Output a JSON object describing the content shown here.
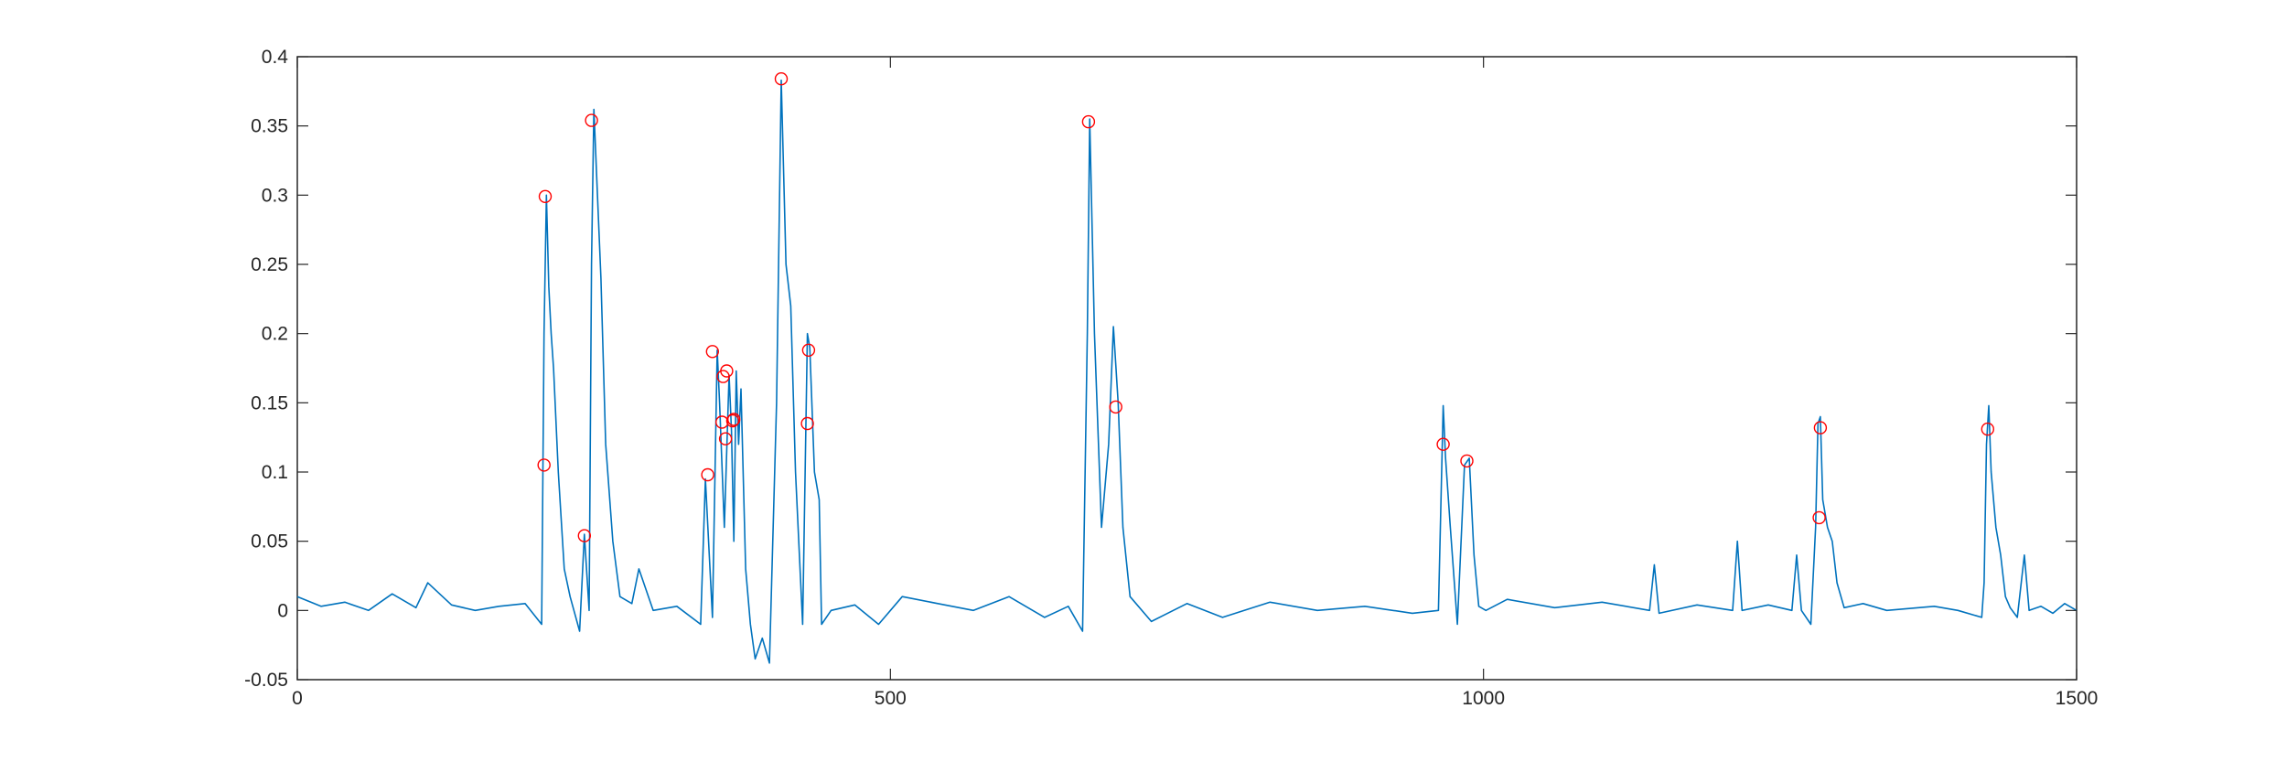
{
  "chart_data": {
    "type": "line",
    "title": "",
    "xlabel": "",
    "ylabel": "",
    "xlim": [
      0,
      1500
    ],
    "ylim": [
      -0.05,
      0.4
    ],
    "x_ticks": [
      0,
      500,
      1000,
      1500
    ],
    "x_tick_labels": [
      "0",
      "500",
      "1000",
      "1500"
    ],
    "y_ticks": [
      -0.05,
      0,
      0.05,
      0.1,
      0.15,
      0.2,
      0.25,
      0.3,
      0.35,
      0.4
    ],
    "y_tick_labels": [
      "-0.05",
      "0",
      "0.05",
      "0.1",
      "0.15",
      "0.2",
      "0.25",
      "0.3",
      "0.35",
      "0.4"
    ],
    "grid": false,
    "line_color": "#0072BD",
    "marker_color": "#FF0000",
    "series": [
      {
        "style": "line",
        "x": [
          0,
          20,
          40,
          60,
          80,
          100,
          110,
          130,
          150,
          170,
          192,
          206,
          208,
          210,
          212,
          214,
          216,
          220,
          225,
          230,
          238,
          242,
          246,
          248,
          250,
          253,
          256,
          260,
          266,
          272,
          282,
          288,
          300,
          320,
          340,
          344,
          350,
          354,
          356,
          360,
          364,
          366,
          368,
          370,
          372,
          374,
          378,
          382,
          386,
          392,
          398,
          404,
          408,
          412,
          416,
          420,
          426,
          430,
          432,
          436,
          440,
          442,
          450,
          470,
          490,
          510,
          540,
          570,
          600,
          630,
          650,
          662,
          666,
          668,
          672,
          678,
          684,
          688,
          692,
          696,
          702,
          720,
          750,
          780,
          820,
          860,
          900,
          940,
          962,
          966,
          968,
          972,
          978,
          984,
          988,
          992,
          996,
          1002,
          1020,
          1060,
          1100,
          1140,
          1144,
          1148,
          1180,
          1210,
          1214,
          1218,
          1240,
          1260,
          1264,
          1268,
          1276,
          1280,
          1282,
          1284,
          1286,
          1290,
          1294,
          1298,
          1304,
          1320,
          1340,
          1380,
          1400,
          1420,
          1422,
          1424,
          1426,
          1428,
          1432,
          1436,
          1440,
          1444,
          1450,
          1456,
          1460,
          1470,
          1480,
          1490,
          1500
        ],
        "y": [
          0.01,
          0.003,
          0.006,
          0.0,
          0.012,
          0.002,
          0.02,
          0.004,
          0.0,
          0.003,
          0.005,
          -0.01,
          0.2,
          0.3,
          0.234,
          0.2,
          0.175,
          0.1,
          0.03,
          0.01,
          -0.015,
          0.055,
          0.0,
          0.25,
          0.362,
          0.3,
          0.24,
          0.12,
          0.05,
          0.01,
          0.005,
          0.03,
          0.0,
          0.003,
          -0.01,
          0.095,
          -0.005,
          0.188,
          0.15,
          0.06,
          0.17,
          0.13,
          0.05,
          0.173,
          0.12,
          0.16,
          0.03,
          -0.01,
          -0.035,
          -0.02,
          -0.038,
          0.15,
          0.383,
          0.25,
          0.22,
          0.1,
          -0.01,
          0.2,
          0.19,
          0.1,
          0.08,
          -0.01,
          0.0,
          0.004,
          -0.01,
          0.01,
          0.005,
          0.0,
          0.01,
          -0.005,
          0.003,
          -0.015,
          0.2,
          0.355,
          0.2,
          0.06,
          0.12,
          0.205,
          0.15,
          0.06,
          0.01,
          -0.008,
          0.005,
          -0.005,
          0.006,
          0.0,
          0.003,
          -0.002,
          0.0,
          0.148,
          0.11,
          0.06,
          -0.01,
          0.105,
          0.11,
          0.04,
          0.003,
          0.0,
          0.008,
          0.002,
          0.006,
          0.0,
          0.033,
          -0.002,
          0.004,
          0.0,
          0.05,
          0.0,
          0.004,
          0.0,
          0.04,
          0.0,
          -0.01,
          0.06,
          0.135,
          0.14,
          0.08,
          0.06,
          0.05,
          0.02,
          0.002,
          0.005,
          0.0,
          0.003,
          0.0,
          -0.005,
          0.02,
          0.12,
          0.148,
          0.1,
          0.06,
          0.04,
          0.01,
          0.002,
          -0.005,
          0.04,
          0.0,
          0.003,
          -0.002,
          0.005,
          0.0
        ]
      },
      {
        "style": "markers",
        "x": [
          208,
          209,
          242,
          248,
          346,
          350,
          358,
          359,
          361,
          362,
          367,
          368,
          408,
          430,
          431,
          667,
          690,
          966,
          986,
          1283,
          1284,
          1425
        ],
        "y": [
          0.105,
          0.299,
          0.054,
          0.354,
          0.098,
          0.187,
          0.136,
          0.169,
          0.124,
          0.173,
          0.137,
          0.138,
          0.384,
          0.135,
          0.188,
          0.353,
          0.147,
          0.12,
          0.108,
          0.067,
          0.132,
          0.131
        ]
      }
    ]
  }
}
